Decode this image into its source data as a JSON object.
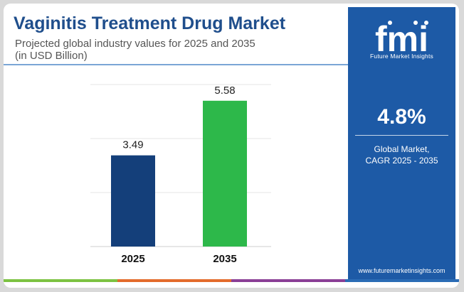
{
  "header": {
    "title": "Vaginitis Treatment Drug Market",
    "subtitle": "Projected global industry values for 2025 and 2035\n(in USD Billion)"
  },
  "chart_data": {
    "type": "bar",
    "categories": [
      "2025",
      "2035"
    ],
    "values": [
      3.49,
      5.58
    ],
    "value_labels": [
      "3.49",
      "5.58"
    ],
    "bar_colors": [
      "#143f7a",
      "#2db84a"
    ],
    "ylim": [
      0,
      6.2
    ],
    "grid": true
  },
  "sidebar": {
    "logo_text": "fmi",
    "logo_subtitle": "Future Market Insights",
    "cagr_value": "4.8%",
    "cagr_label": "Global Market,\nCAGR 2025 - 2035",
    "website": "www.futuremarketinsights.com",
    "background_color": "#1d5aa6"
  },
  "footer": {
    "stripe_colors": [
      "#7cc242",
      "#e36b2c",
      "#8b3f96",
      "#2b6cb5"
    ]
  }
}
